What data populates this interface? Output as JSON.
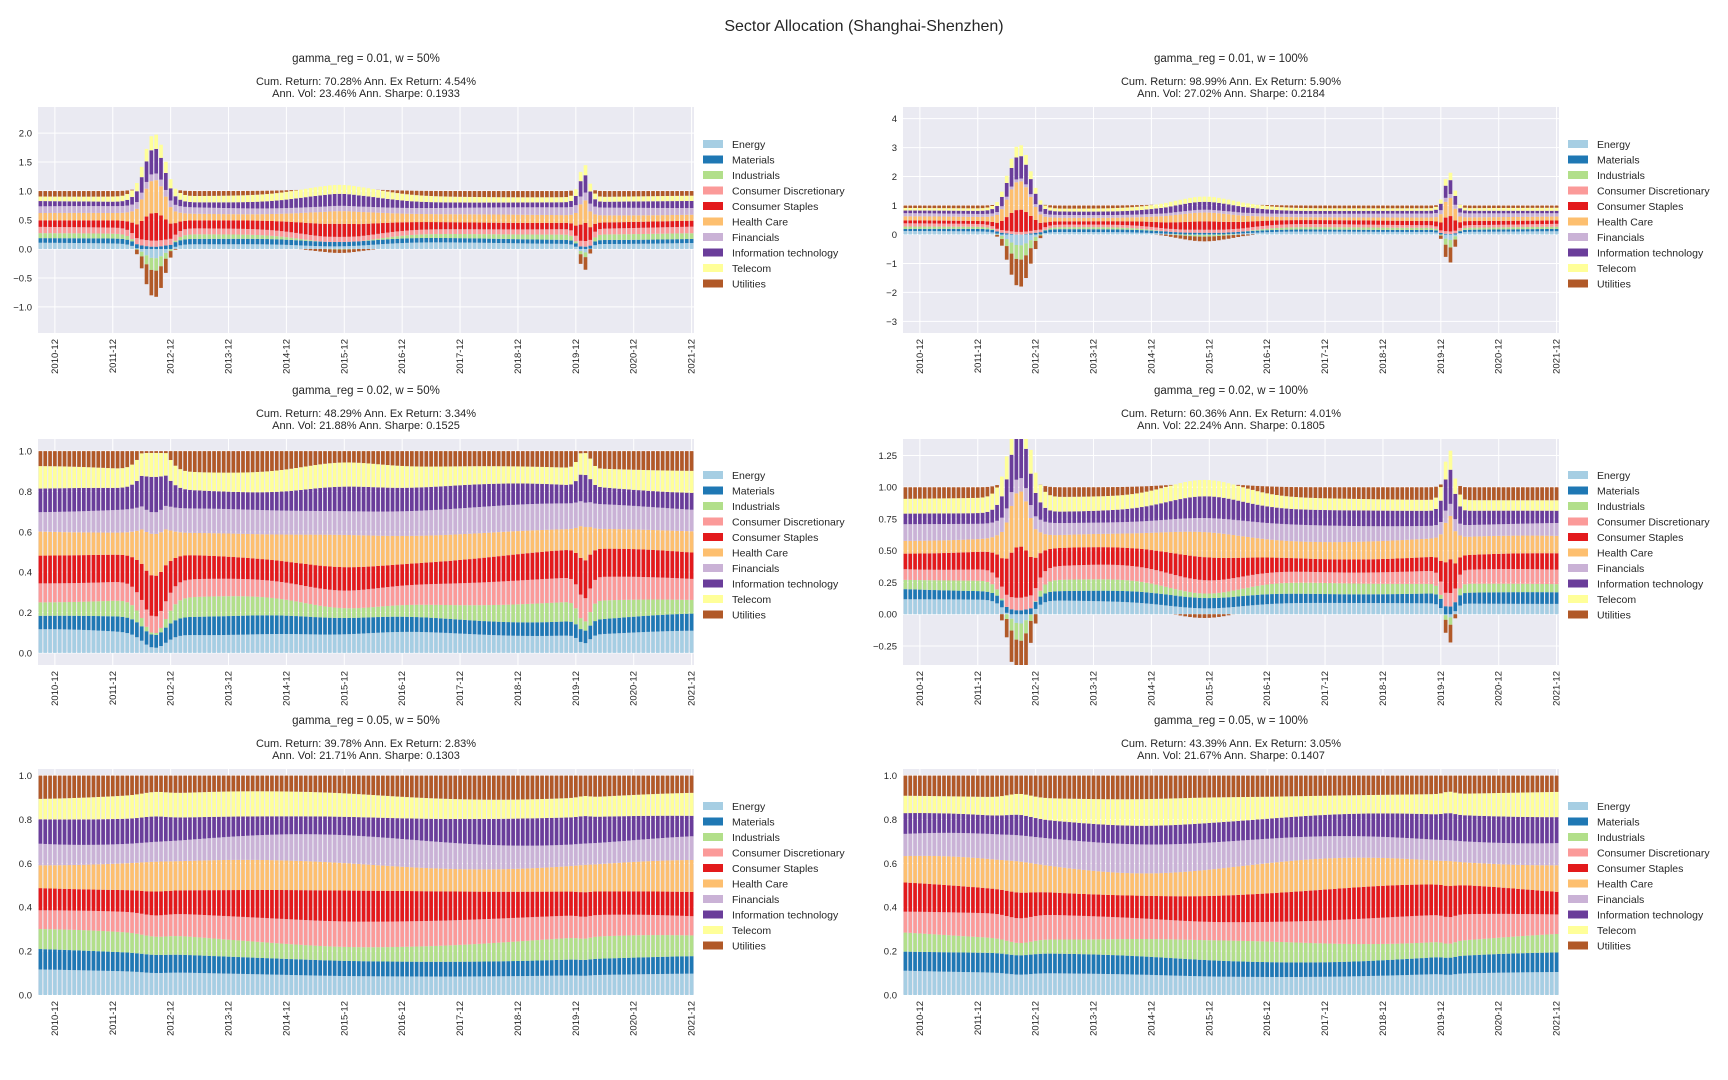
{
  "figure_title": "Sector Allocation (Shanghai-Shenzhen)",
  "colors": {
    "plot_background": "#EAEAF2",
    "grid": "#FFFFFF",
    "text": "#262626"
  },
  "chart_data": [
    {
      "type": "bar",
      "stacked": true,
      "title": "gamma_reg = 0.01, w = 50%",
      "subtitle": [
        "Cum. Return: 70.28% Ann. Ex Return: 4.54%",
        "Ann. Vol: 23.46% Ann. Sharpe: 0.1933"
      ],
      "ylim": [
        -1.45,
        2.45
      ],
      "yticks": [
        -1.0,
        -0.5,
        0.0,
        0.5,
        1.0,
        1.5,
        2.0
      ],
      "ytick_labels": [
        "−1.0",
        "−0.5",
        "0.0",
        "0.5",
        "1.0",
        "1.5",
        "2.0"
      ],
      "grid": true,
      "legend_placement": "center-right outside",
      "regime": "extreme",
      "amplitude": 1.0
    },
    {
      "type": "bar",
      "stacked": true,
      "title": "gamma_reg = 0.01, w = 100%",
      "subtitle": [
        "Cum. Return: 98.99% Ann. Ex Return: 5.90%",
        "Ann. Vol: 27.02% Ann. Sharpe: 0.2184"
      ],
      "ylim": [
        -3.4,
        4.4
      ],
      "yticks": [
        -3,
        -2,
        -1,
        0,
        1,
        2,
        3,
        4
      ],
      "ytick_labels": [
        "−3",
        "−2",
        "−1",
        "0",
        "1",
        "2",
        "3",
        "4"
      ],
      "grid": true,
      "legend_placement": "center-right outside",
      "regime": "extreme",
      "amplitude": 1.9
    },
    {
      "type": "bar",
      "stacked": true,
      "title": "gamma_reg = 0.02, w = 50%",
      "subtitle": [
        "Cum. Return: 48.29% Ann. Ex Return: 3.34%",
        "Ann. Vol: 21.88% Ann. Sharpe: 0.1525"
      ],
      "ylim": [
        -0.06,
        1.06
      ],
      "yticks": [
        0.0,
        0.2,
        0.4,
        0.6,
        0.8,
        1.0
      ],
      "ytick_labels": [
        "0.0",
        "0.2",
        "0.4",
        "0.6",
        "0.8",
        "1.0"
      ],
      "grid": true,
      "legend_placement": "center-right outside",
      "regime": "moderate",
      "amplitude": 0.45
    },
    {
      "type": "bar",
      "stacked": true,
      "title": "gamma_reg = 0.02, w = 100%",
      "subtitle": [
        "Cum. Return: 60.36% Ann. Ex Return: 4.01%",
        "Ann. Vol: 22.24% Ann. Sharpe: 0.1805"
      ],
      "ylim": [
        -0.4,
        1.38
      ],
      "yticks": [
        -0.25,
        0.0,
        0.25,
        0.5,
        0.75,
        1.0,
        1.25
      ],
      "ytick_labels": [
        "−0.25",
        "0.00",
        "0.25",
        "0.50",
        "0.75",
        "1.00",
        "1.25"
      ],
      "grid": true,
      "legend_placement": "center-right outside",
      "regime": "mild",
      "amplitude": 0.75
    },
    {
      "type": "bar",
      "stacked": true,
      "title": "gamma_reg = 0.05, w = 50%",
      "subtitle": [
        "Cum. Return: 39.78% Ann. Ex Return: 2.83%",
        "Ann. Vol: 21.71% Ann. Sharpe: 0.1303"
      ],
      "ylim": [
        0.0,
        1.03
      ],
      "yticks": [
        0.0,
        0.2,
        0.4,
        0.6,
        0.8,
        1.0
      ],
      "ytick_labels": [
        "0.0",
        "0.2",
        "0.4",
        "0.6",
        "0.8",
        "1.0"
      ],
      "grid": true,
      "legend_placement": "center-right outside",
      "regime": "flat",
      "amplitude": 0.12
    },
    {
      "type": "bar",
      "stacked": true,
      "title": "gamma_reg = 0.05, w = 100%",
      "subtitle": [
        "Cum. Return: 43.39% Ann. Ex Return: 3.05%",
        "Ann. Vol: 21.67% Ann. Sharpe: 0.1407"
      ],
      "ylim": [
        0.0,
        1.03
      ],
      "yticks": [
        0.0,
        0.2,
        0.4,
        0.6,
        0.8,
        1.0
      ],
      "ytick_labels": [
        "0.0",
        "0.2",
        "0.4",
        "0.6",
        "0.8",
        "1.0"
      ],
      "grid": true,
      "legend_placement": "center-right outside",
      "regime": "flat",
      "amplitude": 0.2
    }
  ],
  "shared": {
    "x_tick_labels": [
      "2010-12",
      "2011-12",
      "2012-12",
      "2013-12",
      "2014-12",
      "2015-12",
      "2016-12",
      "2017-12",
      "2018-12",
      "2019-12",
      "2020-12",
      "2021-12"
    ],
    "sectors": [
      {
        "name": "Energy",
        "color": "#A6CEE3",
        "base": 0.1
      },
      {
        "name": "Materials",
        "color": "#1F78B4",
        "base": 0.08
      },
      {
        "name": "Industrials",
        "color": "#B2DF8A",
        "base": 0.08
      },
      {
        "name": "Consumer Discretionary",
        "color": "#FB9A99",
        "base": 0.1
      },
      {
        "name": "Consumer Staples",
        "color": "#E31A1C",
        "base": 0.12
      },
      {
        "name": "Health Care",
        "color": "#FDBF6F",
        "base": 0.12
      },
      {
        "name": "Financials",
        "color": "#CAB2D6",
        "base": 0.11
      },
      {
        "name": "Information technology",
        "color": "#6A3D9A",
        "base": 0.1
      },
      {
        "name": "Telecom",
        "color": "#FFFF99",
        "base": 0.1
      },
      {
        "name": "Utilities",
        "color": "#B15928",
        "base": 0.09
      }
    ]
  }
}
